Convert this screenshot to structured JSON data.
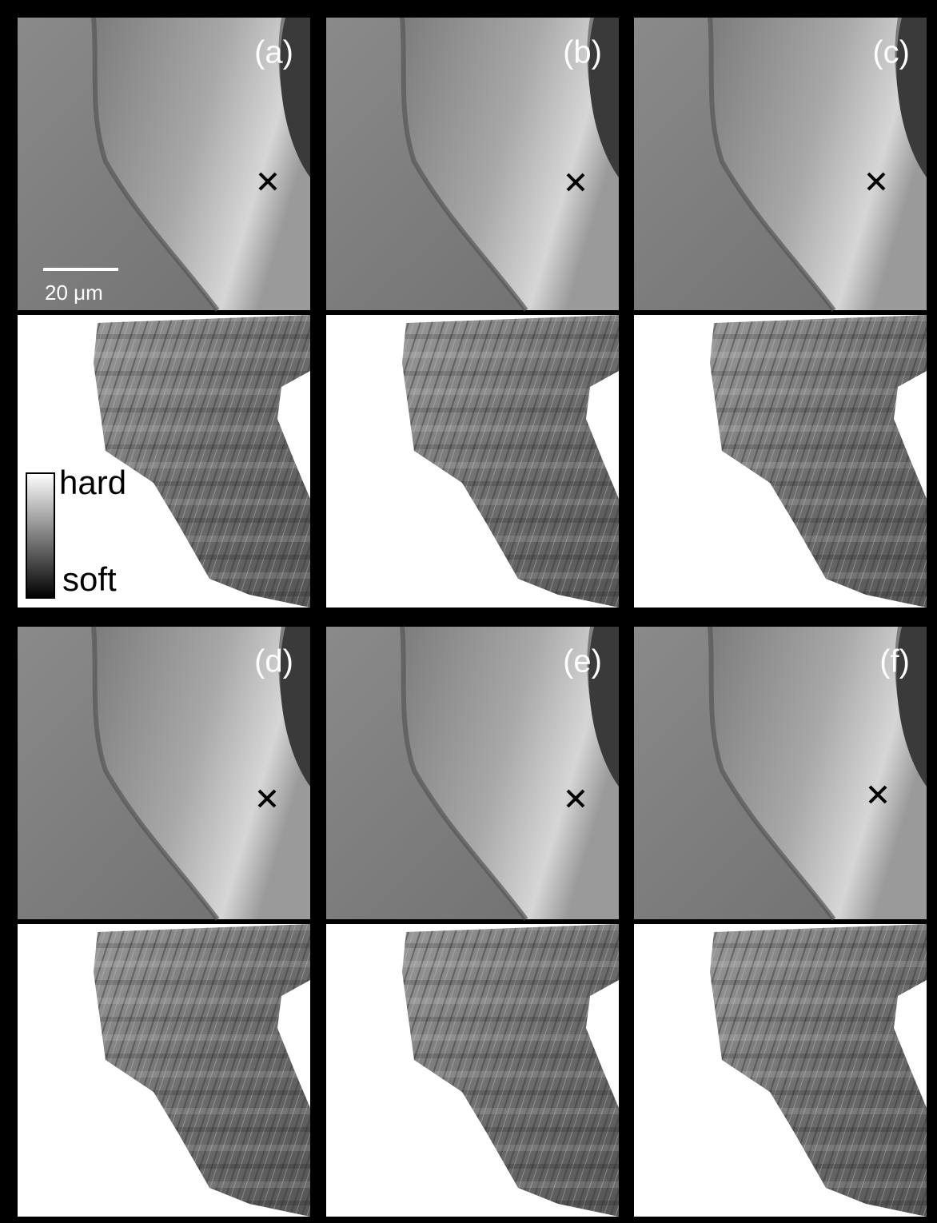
{
  "panels": [
    {
      "label": "(a)"
    },
    {
      "label": "(b)"
    },
    {
      "label": "(c)"
    },
    {
      "label": "(d)"
    },
    {
      "label": "(e)"
    },
    {
      "label": "(f)"
    }
  ],
  "scale_bar": {
    "label": "20 μm"
  },
  "colorbar": {
    "top_label": "hard",
    "bottom_label": "soft"
  }
}
